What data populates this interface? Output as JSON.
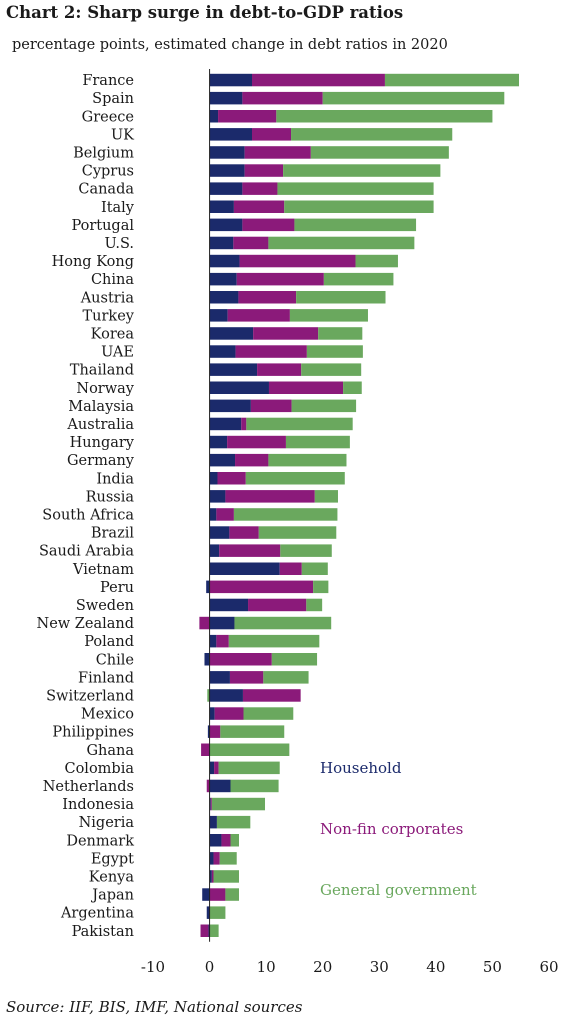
{
  "header": {
    "title": "Chart 2: Sharp surge in debt-to-GDP ratios",
    "subtitle": "percentage points, estimated change in debt ratios in 2020"
  },
  "source": "Source: IIF, BIS, IMF, National sources",
  "colors": {
    "household": "#1b2a6b",
    "corporates": "#8b1a7a",
    "government": "#6aa85e"
  },
  "chart_data": {
    "type": "bar",
    "orientation": "horizontal",
    "stacked": true,
    "title": "Chart 2: Sharp surge in debt-to-GDP ratios",
    "subtitle": "percentage points, estimated change in debt ratios in 2020",
    "xlim": [
      -10,
      60
    ],
    "xticks": [
      -10,
      0,
      10,
      20,
      30,
      40,
      50,
      60
    ],
    "legend_position": "bottom-right",
    "categories": [
      "France",
      "Spain",
      "Greece",
      "UK",
      "Belgium",
      "Cyprus",
      "Canada",
      "Italy",
      "Portugal",
      "U.S.",
      "Hong Kong",
      "China",
      "Austria",
      "Turkey",
      "Korea",
      "UAE",
      "Thailand",
      "Norway",
      "Malaysia",
      "Australia",
      "Hungary",
      "Germany",
      "India",
      "Russia",
      "South Africa",
      "Brazil",
      "Saudi Arabia",
      "Vietnam",
      "Peru",
      "Sweden",
      "New Zealand",
      "Poland",
      "Chile",
      "Finland",
      "Switzerland",
      "Mexico",
      "Philippines",
      "Ghana",
      "Colombia",
      "Netherlands",
      "Indonesia",
      "Nigeria",
      "Denmark",
      "Egypt",
      "Kenya",
      "Japan",
      "Argentina",
      "Pakistan"
    ],
    "series": [
      {
        "name": "Household",
        "values": [
          7.5,
          5.8,
          1.5,
          7.5,
          6.2,
          6.2,
          5.8,
          4.3,
          5.8,
          4.2,
          5.3,
          4.8,
          5.1,
          3.2,
          7.7,
          4.6,
          8.4,
          10.5,
          7.3,
          5.6,
          3.1,
          4.5,
          1.4,
          2.8,
          1.2,
          3.5,
          1.7,
          12.4,
          -0.6,
          6.8,
          4.4,
          1.2,
          -0.9,
          3.6,
          5.9,
          0.9,
          -0.3,
          0.0,
          0.8,
          3.7,
          0.2,
          1.3,
          2.1,
          0.7,
          0.4,
          -1.3,
          -0.5,
          -0.2
        ]
      },
      {
        "name": "Non-fin corporates",
        "values": [
          23.5,
          14.2,
          10.3,
          6.9,
          11.7,
          6.8,
          6.2,
          8.9,
          9.2,
          6.2,
          20.5,
          15.4,
          10.2,
          11.0,
          11.5,
          12.6,
          7.8,
          13.1,
          7.2,
          0.9,
          10.4,
          5.9,
          5.0,
          15.8,
          3.1,
          5.2,
          10.8,
          3.9,
          18.3,
          10.3,
          -1.8,
          2.2,
          11.0,
          5.9,
          10.2,
          5.1,
          1.9,
          -1.5,
          0.8,
          -0.5,
          0.2,
          0.0,
          1.6,
          1.1,
          0.3,
          2.8,
          0.0,
          -1.4
        ]
      },
      {
        "name": "General government",
        "values": [
          23.7,
          32.1,
          38.2,
          28.5,
          24.4,
          27.8,
          27.6,
          26.4,
          21.5,
          25.8,
          7.5,
          12.3,
          15.8,
          13.8,
          7.8,
          9.9,
          10.6,
          3.3,
          11.4,
          18.8,
          11.3,
          13.8,
          17.5,
          4.1,
          18.3,
          13.7,
          9.1,
          4.6,
          2.7,
          2.8,
          17.1,
          16.0,
          8.0,
          8.0,
          -0.4,
          8.8,
          11.3,
          14.1,
          10.8,
          8.5,
          9.4,
          5.9,
          1.5,
          3.0,
          4.5,
          2.4,
          2.8,
          1.6
        ]
      }
    ]
  }
}
